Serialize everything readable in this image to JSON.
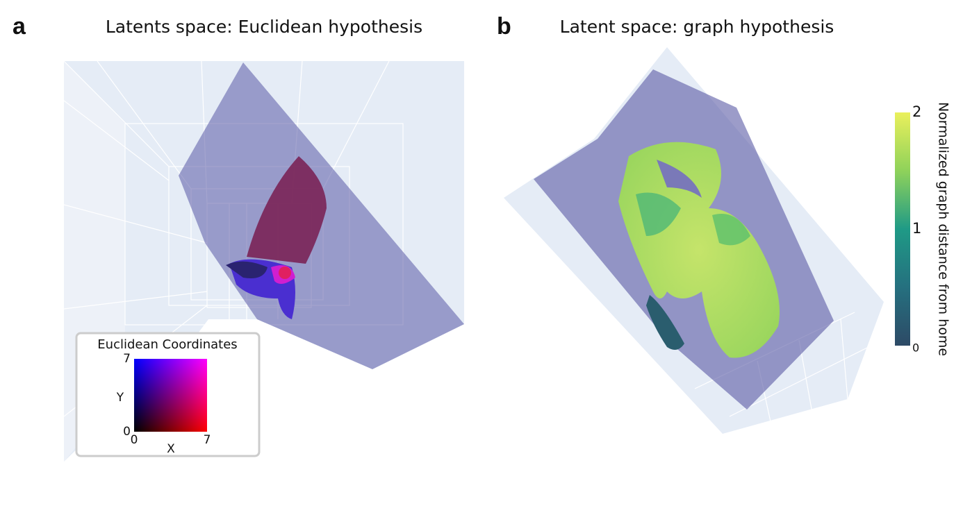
{
  "panels": [
    {
      "label": "a",
      "title": "Latents space: Euclidean hypothesis",
      "legend": {
        "title": "Euclidean Coordinates",
        "x_label": "X",
        "y_label": "Y",
        "xlim": [
          0,
          7
        ],
        "ylim": [
          0,
          7
        ]
      }
    },
    {
      "label": "b",
      "title": "Latent space: graph hypothesis",
      "colorbar": {
        "title": "Normalized graph distance from home",
        "lim": [
          0,
          2
        ],
        "ticks": [
          0,
          1,
          2
        ]
      }
    }
  ]
}
